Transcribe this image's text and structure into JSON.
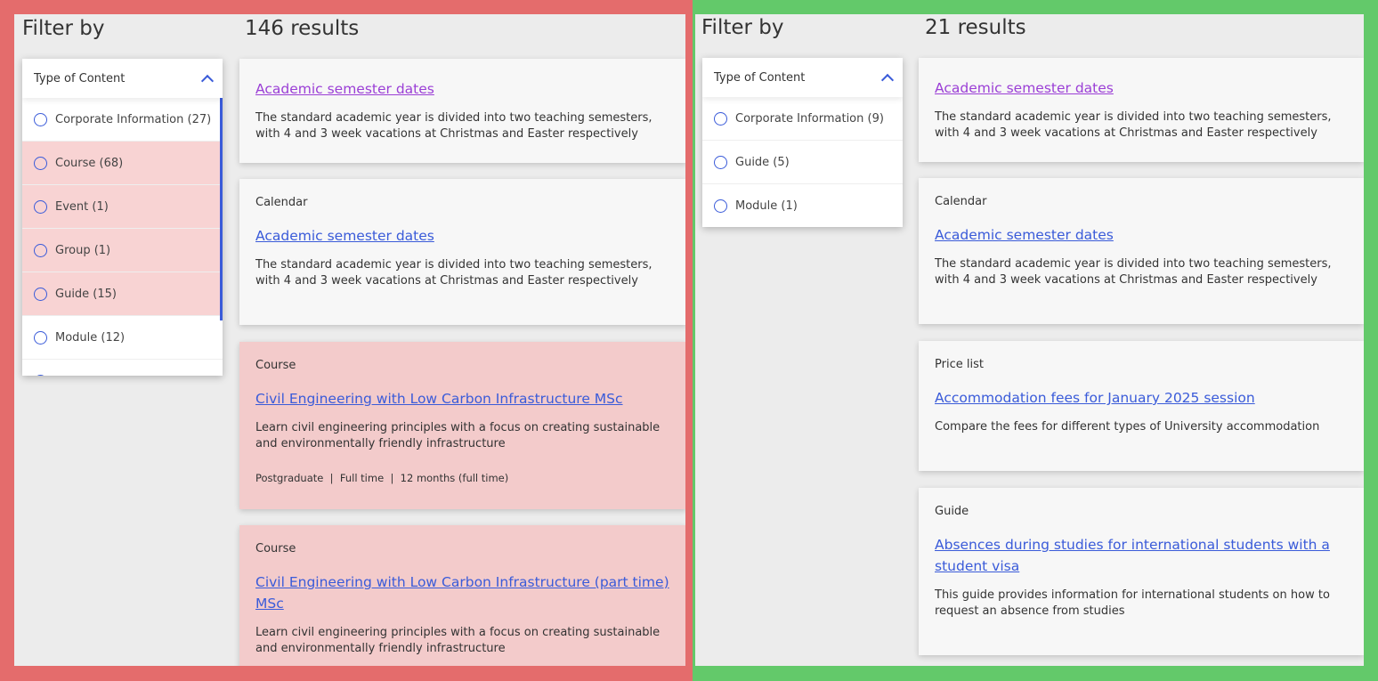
{
  "colors": {
    "bad": "#e46c6c",
    "good": "#63c96a",
    "link": "#3a5bd9",
    "visited": "#9b3fd6",
    "highlight": "#f8d3d3"
  },
  "left": {
    "filter_heading": "Filter by",
    "results_heading": "146 results",
    "dropdown": {
      "label": "Type of Content",
      "options": [
        {
          "label": "Corporate Information (27)",
          "highlighted": false
        },
        {
          "label": "Course (68)",
          "highlighted": true
        },
        {
          "label": "Event (1)",
          "highlighted": true
        },
        {
          "label": "Group (1)",
          "highlighted": true
        },
        {
          "label": "Guide (15)",
          "highlighted": true
        },
        {
          "label": "Module (12)",
          "highlighted": false
        }
      ]
    },
    "results": [
      {
        "category": "",
        "title": "Academic semester dates",
        "visited": true,
        "description": "The standard academic year is divided into two teaching semesters, with 4 and 3 week vacations at Christmas and Easter respectively"
      },
      {
        "category": "Calendar",
        "title": "Academic semester dates",
        "description": "The standard academic year is divided into two teaching semesters, with 4 and 3 week vacations at Christmas and Easter respectively"
      },
      {
        "category": "Course",
        "title": "Civil Engineering with Low Carbon Infrastructure MSc",
        "description": "Learn civil engineering principles with a focus on creating sustainable and environmentally friendly infrastructure",
        "meta": "Postgraduate  |  Full time  |  12 months (full time)",
        "highlighted": true
      },
      {
        "category": "Course",
        "title": "Civil Engineering with Low Carbon Infrastructure (part time) MSc",
        "description": "Learn civil engineering principles with a focus on creating sustainable and environmentally friendly infrastructure",
        "highlighted": true
      }
    ]
  },
  "right": {
    "filter_heading": "Filter by",
    "results_heading": "21 results",
    "dropdown": {
      "label": "Type of Content",
      "options": [
        {
          "label": "Corporate Information (9)"
        },
        {
          "label": "Guide (5)"
        },
        {
          "label": "Module (1)"
        }
      ]
    },
    "results": [
      {
        "category": "",
        "title": "Academic semester dates",
        "visited": true,
        "description": "The standard academic year is divided into two teaching semesters, with 4 and 3 week vacations at Christmas and Easter respectively"
      },
      {
        "category": "Calendar",
        "title": "Academic semester dates",
        "description": "The standard academic year is divided into two teaching semesters, with 4 and 3 week vacations at Christmas and Easter respectively"
      },
      {
        "category": "Price list",
        "title": "Accommodation fees for January 2025 session",
        "description": "Compare the fees for different types of University accommodation"
      },
      {
        "category": "Guide",
        "title": "Absences during studies for international students with a student visa",
        "description": "This guide provides information for international students on how to request an absence from studies"
      }
    ]
  }
}
